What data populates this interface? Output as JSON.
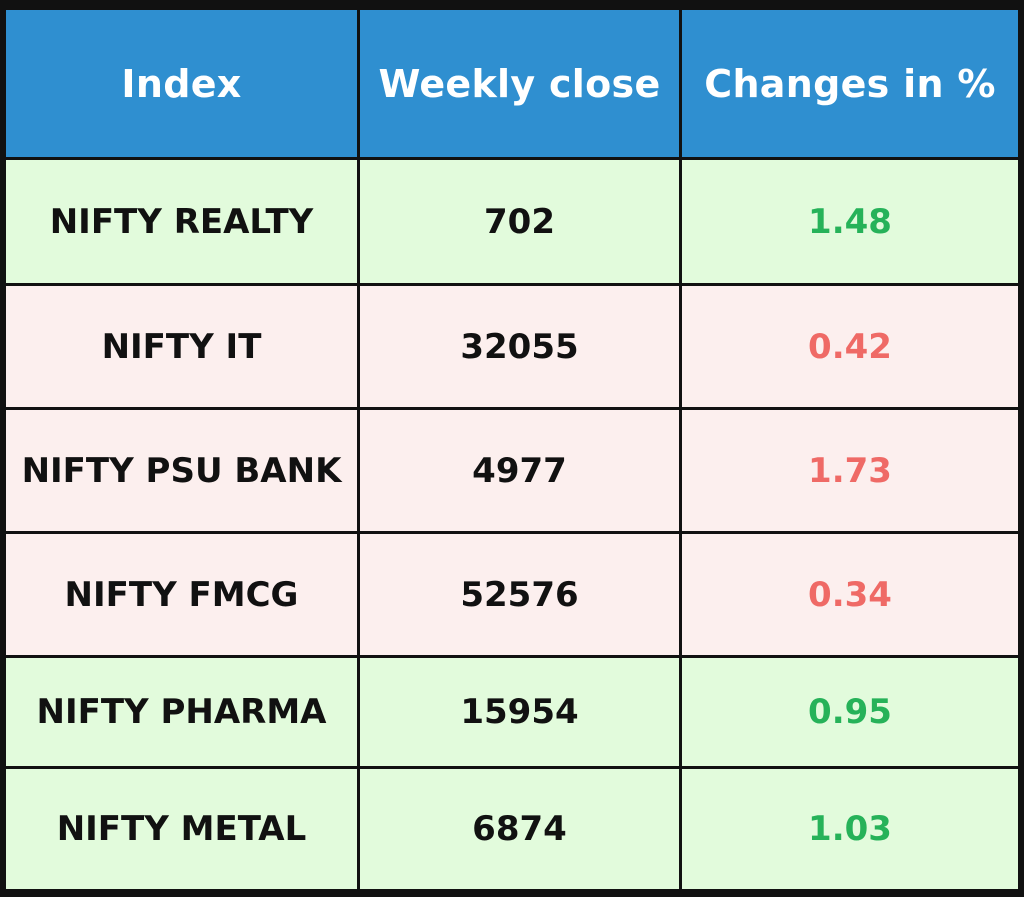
{
  "table": {
    "headers": [
      "Index",
      "Weekly close",
      "Changes in %"
    ],
    "colors": {
      "header_bg": "#2f8fd0",
      "positive_row_bg": "#e2fbdc",
      "negative_row_bg": "#fcefee",
      "positive_text": "#26b259",
      "negative_text": "#ef6a66"
    },
    "rows": [
      {
        "index": "NIFTY REALTY",
        "weekly_close": "702",
        "change": "1.48",
        "direction": "up"
      },
      {
        "index": "NIFTY IT",
        "weekly_close": "32055",
        "change": "0.42",
        "direction": "down"
      },
      {
        "index": "NIFTY PSU BANK",
        "weekly_close": "4977",
        "change": "1.73",
        "direction": "down"
      },
      {
        "index": "NIFTY FMCG",
        "weekly_close": "52576",
        "change": "0.34",
        "direction": "down"
      },
      {
        "index": "NIFTY PHARMA",
        "weekly_close": "15954",
        "change": "0.95",
        "direction": "up"
      },
      {
        "index": "NIFTY METAL",
        "weekly_close": "6874",
        "change": "1.03",
        "direction": "up"
      }
    ]
  }
}
